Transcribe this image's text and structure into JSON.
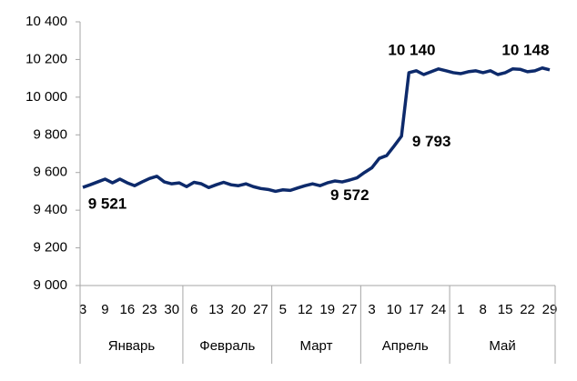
{
  "chart_data": {
    "type": "line",
    "categories": [
      "3",
      null,
      null,
      "9",
      null,
      null,
      "16",
      null,
      null,
      "23",
      null,
      null,
      "30",
      null,
      null,
      "6",
      null,
      null,
      "13",
      null,
      null,
      "20",
      null,
      null,
      "27",
      null,
      null,
      "5",
      null,
      null,
      "12",
      null,
      null,
      "19",
      null,
      null,
      "27",
      null,
      null,
      "3",
      null,
      null,
      "10",
      null,
      null,
      "17",
      null,
      null,
      "24",
      null,
      null,
      "1",
      null,
      null,
      "8",
      null,
      null,
      "15",
      null,
      null,
      "22",
      null,
      null,
      "29"
    ],
    "groups": [
      {
        "label": "Январь",
        "count": 5
      },
      {
        "label": "Февраль",
        "count": 4
      },
      {
        "label": "Март",
        "count": 4
      },
      {
        "label": "Апрель",
        "count": 4
      },
      {
        "label": "Май",
        "count": 5
      }
    ],
    "series": [
      {
        "color": "#0d2a6b",
        "values": [
          9521,
          9535,
          9550,
          9565,
          9545,
          9565,
          9545,
          9530,
          9550,
          9568,
          9580,
          9550,
          9540,
          9545,
          9525,
          9548,
          9540,
          9520,
          9535,
          9548,
          9535,
          9530,
          9540,
          9525,
          9515,
          9510,
          9500,
          9508,
          9505,
          9518,
          9530,
          9540,
          9530,
          9545,
          9555,
          9550,
          9560,
          9572,
          9600,
          9625,
          9675,
          9690,
          9740,
          9793,
          10130,
          10140,
          10120,
          10135,
          10150,
          10140,
          10130,
          10125,
          10135,
          10140,
          10130,
          10140,
          10120,
          10130,
          10150,
          10148,
          10135,
          10140,
          10155,
          10145
        ],
        "value_labels": [
          "9 521",
          null,
          null,
          null,
          null,
          null,
          null,
          null,
          null,
          null,
          null,
          null,
          null,
          null,
          null,
          null,
          null,
          null,
          null,
          null,
          null,
          null,
          null,
          null,
          null,
          null,
          null,
          null,
          null,
          null,
          null,
          null,
          null,
          null,
          null,
          null,
          null,
          "9 572",
          null,
          null,
          null,
          null,
          null,
          "9 793",
          null,
          "10 140",
          null,
          null,
          null,
          null,
          null,
          null,
          null,
          null,
          null,
          null,
          null,
          null,
          null,
          "10 148",
          null,
          null,
          null,
          null
        ]
      }
    ],
    "ylim": [
      9000,
      10400
    ],
    "yticks": [
      {
        "value": 9000,
        "label": "9 000"
      },
      {
        "value": 9200,
        "label": "9 200"
      },
      {
        "value": 9400,
        "label": "9 400"
      },
      {
        "value": 9600,
        "label": "9 600"
      },
      {
        "value": 9800,
        "label": "9 800"
      },
      {
        "value": 10000,
        "label": "10 000"
      },
      {
        "value": 10200,
        "label": "10 200"
      },
      {
        "value": 10400,
        "label": "10 400"
      }
    ]
  }
}
